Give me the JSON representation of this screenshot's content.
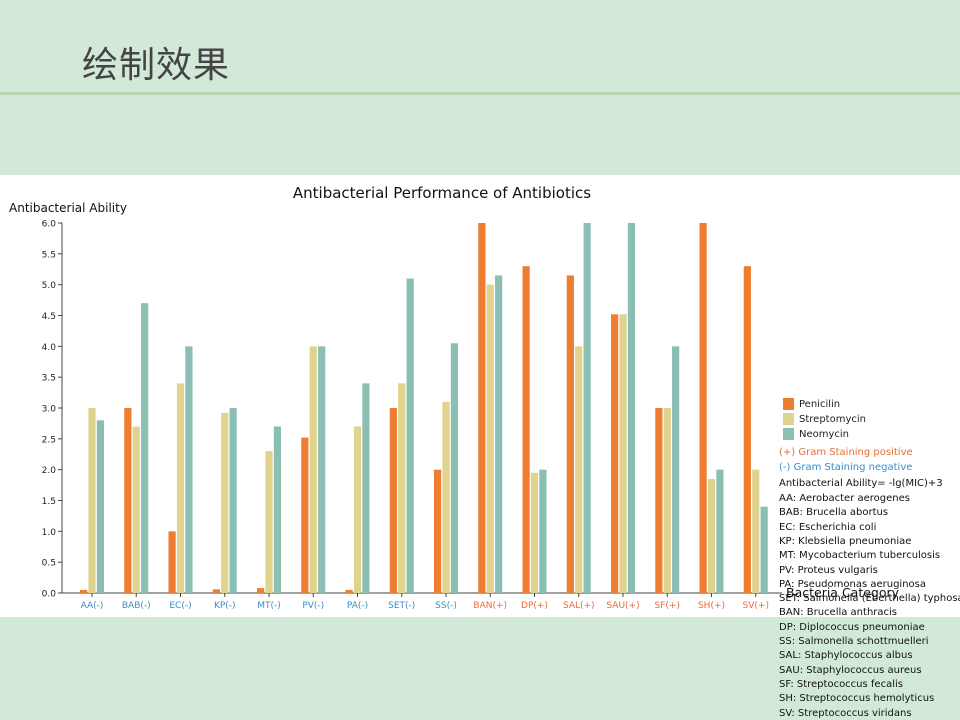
{
  "slide": {
    "title": "绘制效果"
  },
  "chart_data": {
    "type": "bar",
    "title": "Antibacterial Performance of Antibiotics",
    "ylabel": "Antibacterial Ability",
    "xlabel": "Bacteria Category",
    "ylim": [
      0,
      6
    ],
    "yticks": [
      "0.0",
      "0.5",
      "1.0",
      "1.5",
      "2.0",
      "2.5",
      "3.0",
      "3.5",
      "4.0",
      "4.5",
      "5.0",
      "5.5",
      "6.0"
    ],
    "categories": [
      "AA(-)",
      "BAB(-)",
      "EC(-)",
      "KP(-)",
      "MT(-)",
      "PV(-)",
      "PA(-)",
      "SET(-)",
      "SS(-)",
      "BAN(+)",
      "DP(+)",
      "SAL(+)",
      "SAU(+)",
      "SF(+)",
      "SH(+)",
      "SV(+)"
    ],
    "gram": [
      "-",
      "-",
      "-",
      "-",
      "-",
      "-",
      "-",
      "-",
      "-",
      "+",
      "+",
      "+",
      "+",
      "+",
      "+",
      "+"
    ],
    "series": [
      {
        "name": "Penicilin",
        "color": "#ee7d31",
        "values": [
          0.05,
          3.0,
          1.0,
          0.06,
          0.08,
          2.52,
          0.05,
          3.0,
          2.0,
          6.0,
          5.3,
          5.15,
          4.52,
          3.0,
          6.0,
          5.3
        ]
      },
      {
        "name": "Streptomycin",
        "color": "#dfd38e",
        "values": [
          3.0,
          2.7,
          3.4,
          2.92,
          2.3,
          4.0,
          2.7,
          3.4,
          3.1,
          5.0,
          1.95,
          4.0,
          4.52,
          3.0,
          1.85,
          2.0
        ]
      },
      {
        "name": "Neomycin",
        "color": "#8cbfb3",
        "values": [
          2.8,
          4.7,
          4.0,
          3.0,
          2.7,
          4.0,
          3.4,
          5.1,
          4.05,
          5.15,
          2.0,
          6.0,
          6.0,
          4.0,
          2.0,
          1.4
        ]
      }
    ],
    "negative_color": "#3a8cc6",
    "positive_color": "#e86b3a",
    "legend_position": "right",
    "grid": false
  },
  "legend_notes": {
    "gram_positive": "(+) Gram Staining positive",
    "gram_negative": "(-) Gram Staining negative",
    "formula": "Antibacterial Ability= -lg(MIC)+3",
    "abbreviations": [
      "AA: Aerobacter aerogenes",
      "BAB: Brucella abortus",
      "EC: Escherichia coli",
      "KP: Klebsiella pneumoniae",
      "MT: Mycobacterium tuberculosis",
      "PV: Proteus vulgaris",
      "PA: Pseudomonas aeruginosa",
      "SET: Salmonella (Eberthella) typhosa",
      "BAN: Brucella anthracis",
      "DP: Diplococcus pneumoniae",
      "SS: Salmonella schottmuelleri",
      "SAL: Staphylococcus albus",
      "SAU: Staphylococcus aureus",
      "SF: Streptococcus fecalis",
      "SH: Streptococcus hemolyticus",
      "SV: Streptococcus viridans"
    ]
  }
}
